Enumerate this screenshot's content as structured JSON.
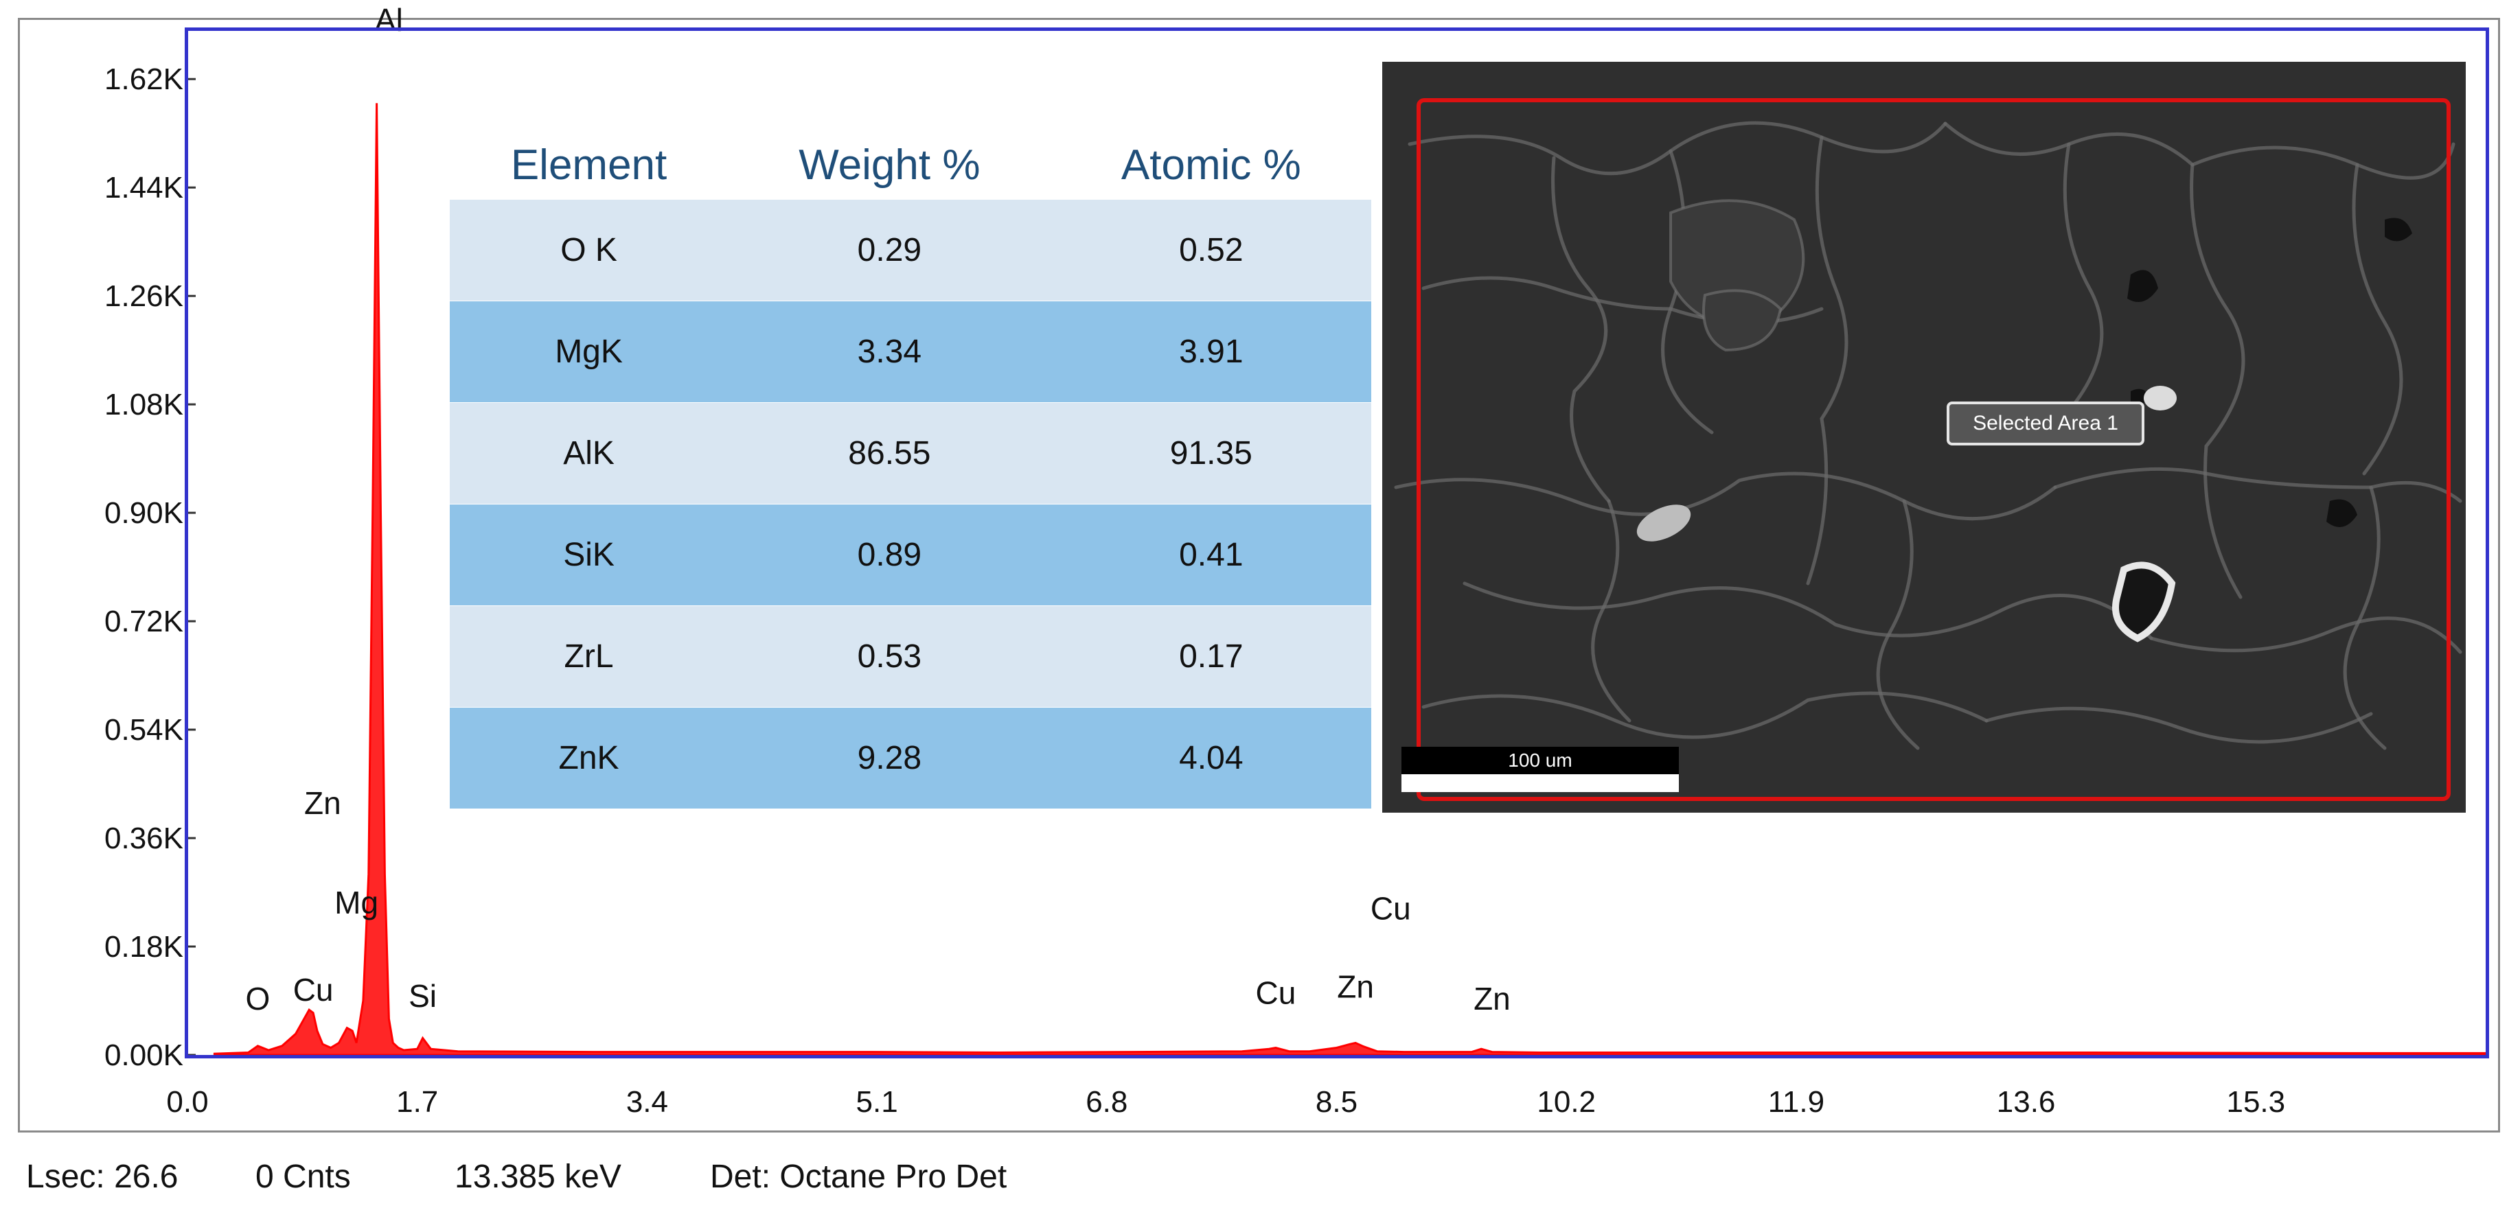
{
  "chart_data": {
    "type": "line",
    "title": "",
    "xlabel": "",
    "ylabel": "",
    "xlim": [
      0.0,
      17.0
    ],
    "ylim": [
      0,
      1700
    ],
    "x_ticks": [
      "0.0",
      "1.7",
      "3.4",
      "5.1",
      "6.8",
      "8.5",
      "10.2",
      "11.9",
      "13.6",
      "15.3"
    ],
    "y_ticks": [
      "0.00K",
      "0.18K",
      "0.36K",
      "0.54K",
      "0.72K",
      "0.90K",
      "1.08K",
      "1.26K",
      "1.44K",
      "1.62K"
    ],
    "series": [
      {
        "color": "#ff0000",
        "x": [
          0.2,
          0.45,
          0.52,
          0.6,
          0.7,
          0.8,
          0.85,
          0.9,
          0.93,
          0.96,
          1.0,
          1.06,
          1.12,
          1.18,
          1.22,
          1.25,
          1.3,
          1.34,
          1.37,
          1.4,
          1.43,
          1.46,
          1.49,
          1.52,
          1.56,
          1.6,
          1.7,
          1.74,
          1.8,
          2.0,
          3.0,
          4.0,
          5.0,
          6.0,
          7.0,
          7.8,
          8.0,
          8.05,
          8.15,
          8.3,
          8.5,
          8.6,
          8.64,
          8.7,
          8.8,
          9.0,
          9.5,
          9.57,
          9.65,
          10.0,
          12.0,
          14.0,
          16.0,
          17.0
        ],
        "y": [
          2,
          4,
          15,
          8,
          15,
          35,
          55,
          75,
          70,
          40,
          18,
          12,
          20,
          45,
          40,
          20,
          90,
          300,
          900,
          1580,
          900,
          300,
          60,
          20,
          12,
          8,
          10,
          28,
          10,
          6,
          5,
          5,
          5,
          4,
          5,
          6,
          10,
          12,
          6,
          6,
          12,
          18,
          20,
          14,
          6,
          5,
          5,
          10,
          5,
          4,
          4,
          4,
          3,
          3
        ]
      }
    ],
    "annotations": [
      {
        "text": "Al",
        "x": 1.49,
        "y": 1700
      },
      {
        "text": "Zn",
        "x": 1.0,
        "y": 400
      },
      {
        "text": "Mg",
        "x": 1.25,
        "y": 235
      },
      {
        "text": "Cu",
        "x": 0.93,
        "y": 90
      },
      {
        "text": "O",
        "x": 0.52,
        "y": 75
      },
      {
        "text": "Si",
        "x": 1.74,
        "y": 80
      },
      {
        "text": "Cu",
        "x": 8.05,
        "y": 85
      },
      {
        "text": "Zn",
        "x": 8.64,
        "y": 95
      },
      {
        "text": "Cu",
        "x": 8.9,
        "y": 225
      },
      {
        "text": "Zn",
        "x": 9.65,
        "y": 75
      }
    ],
    "grid": false,
    "legend": "none"
  },
  "composition_table": {
    "headers": [
      "Element",
      "Weight %",
      "Atomic %"
    ],
    "rows": [
      [
        "O K",
        "0.29",
        "0.52"
      ],
      [
        "MgK",
        "3.34",
        "3.91"
      ],
      [
        "AlK",
        "86.55",
        "91.35"
      ],
      [
        "SiK",
        "0.89",
        "0.41"
      ],
      [
        "ZrL",
        "0.53",
        "0.17"
      ],
      [
        "ZnK",
        "9.28",
        "4.04"
      ]
    ]
  },
  "sem_image": {
    "selected_area_label": "Selected Area 1",
    "scale_bar_label": "100 um",
    "selection_color": "#dd1111"
  },
  "status_bar": {
    "lsec": "Lsec: 26.6",
    "counts": "0 Cnts",
    "energy": "13.385 keV",
    "detector": "Det: Octane Pro Det"
  },
  "colors": {
    "spectrum": "#ff0000",
    "plot_frame": "#3333cc",
    "header_text": "#1f4e79",
    "row_light": "#d9e6f2",
    "row_dark": "#8fc3e8"
  }
}
